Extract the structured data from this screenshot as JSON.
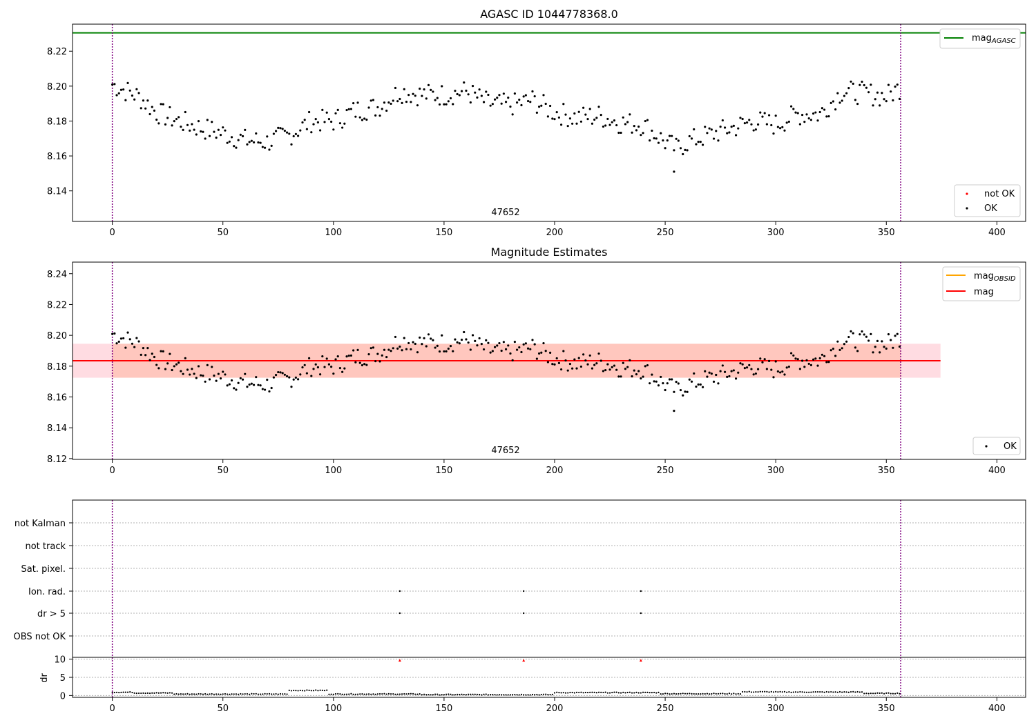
{
  "chart_data": [
    {
      "type": "scatter",
      "title": "AGASC ID 1044778368.0",
      "xlim": [
        -18,
        413
      ],
      "ylim": [
        8.1225,
        8.2355
      ],
      "xticks": [
        0,
        50,
        100,
        150,
        200,
        250,
        300,
        350,
        400
      ],
      "yticks": [
        8.14,
        8.16,
        8.18,
        8.2,
        8.22
      ],
      "mag_agasc": 8.2305,
      "vlines": [
        0,
        356.5
      ],
      "text_label": {
        "text": "47652",
        "x": 178,
        "y": 8.1275
      },
      "legend_upper": [
        {
          "name": "mag",
          "subscript": "AGASC",
          "color": "#008000"
        }
      ],
      "legend_lower": [
        {
          "name": "not OK",
          "color": "#ff0000"
        },
        {
          "name": "OK",
          "color": "#000000"
        }
      ],
      "legend_upper_loc": "upper-right",
      "legend_lower_loc": "lower-right",
      "ok_color": "#000000",
      "notok_color": "#ff0000",
      "agasc_color": "#008000",
      "vline_color": "#800080"
    },
    {
      "type": "scatter",
      "title": "Magnitude Estimates",
      "xlim": [
        -18,
        413
      ],
      "ylim": [
        8.1195,
        8.2475
      ],
      "xticks": [
        0,
        50,
        100,
        150,
        200,
        250,
        300,
        350,
        400
      ],
      "yticks": [
        8.12,
        8.14,
        8.16,
        8.18,
        8.2,
        8.22,
        8.24
      ],
      "mag_mean": 8.1835,
      "mag_band": [
        8.1725,
        8.1945
      ],
      "band_xrange": [
        -18,
        374.5
      ],
      "obsid_band_xrange": [
        0,
        356.5
      ],
      "vlines": [
        0,
        356.5
      ],
      "text_label": {
        "text": "47652",
        "x": 178,
        "y": 8.124
      },
      "legend_upper": [
        {
          "name": "mag",
          "subscript": "OBSID",
          "color": "#ffa500"
        },
        {
          "name": "mag",
          "subscript": "",
          "color": "#ff0000"
        }
      ],
      "legend_lower": [
        {
          "name": "OK",
          "color": "#000000"
        }
      ],
      "legend_upper_loc": "upper-right",
      "legend_lower_loc": "lower-right",
      "band_color": "#ffc0cb",
      "obsid_band_color": "#ffa07a"
    },
    {
      "type": "scatter",
      "xlim": [
        -18,
        413
      ],
      "xticks": [
        0,
        50,
        100,
        150,
        200,
        250,
        300,
        350,
        400
      ],
      "flag_labels": [
        "not Kalman",
        "not track",
        "Sat. pixel.",
        "Ion. rad.",
        "dr > 5",
        "OBS not OK"
      ],
      "flag_points": {
        "Ion. rad.": [
          130,
          186,
          239
        ],
        "dr > 5": [
          130,
          186,
          239
        ]
      },
      "dr_ylabel": "dr",
      "dr_yticks": [
        0,
        5,
        10
      ],
      "dr_ylim": [
        -0.5,
        10.5
      ],
      "dr_outliers": [
        130,
        186,
        239
      ],
      "dr_outlier_value": 9.7,
      "vlines": [
        0,
        356.5
      ]
    }
  ],
  "x_values_note": ""
}
